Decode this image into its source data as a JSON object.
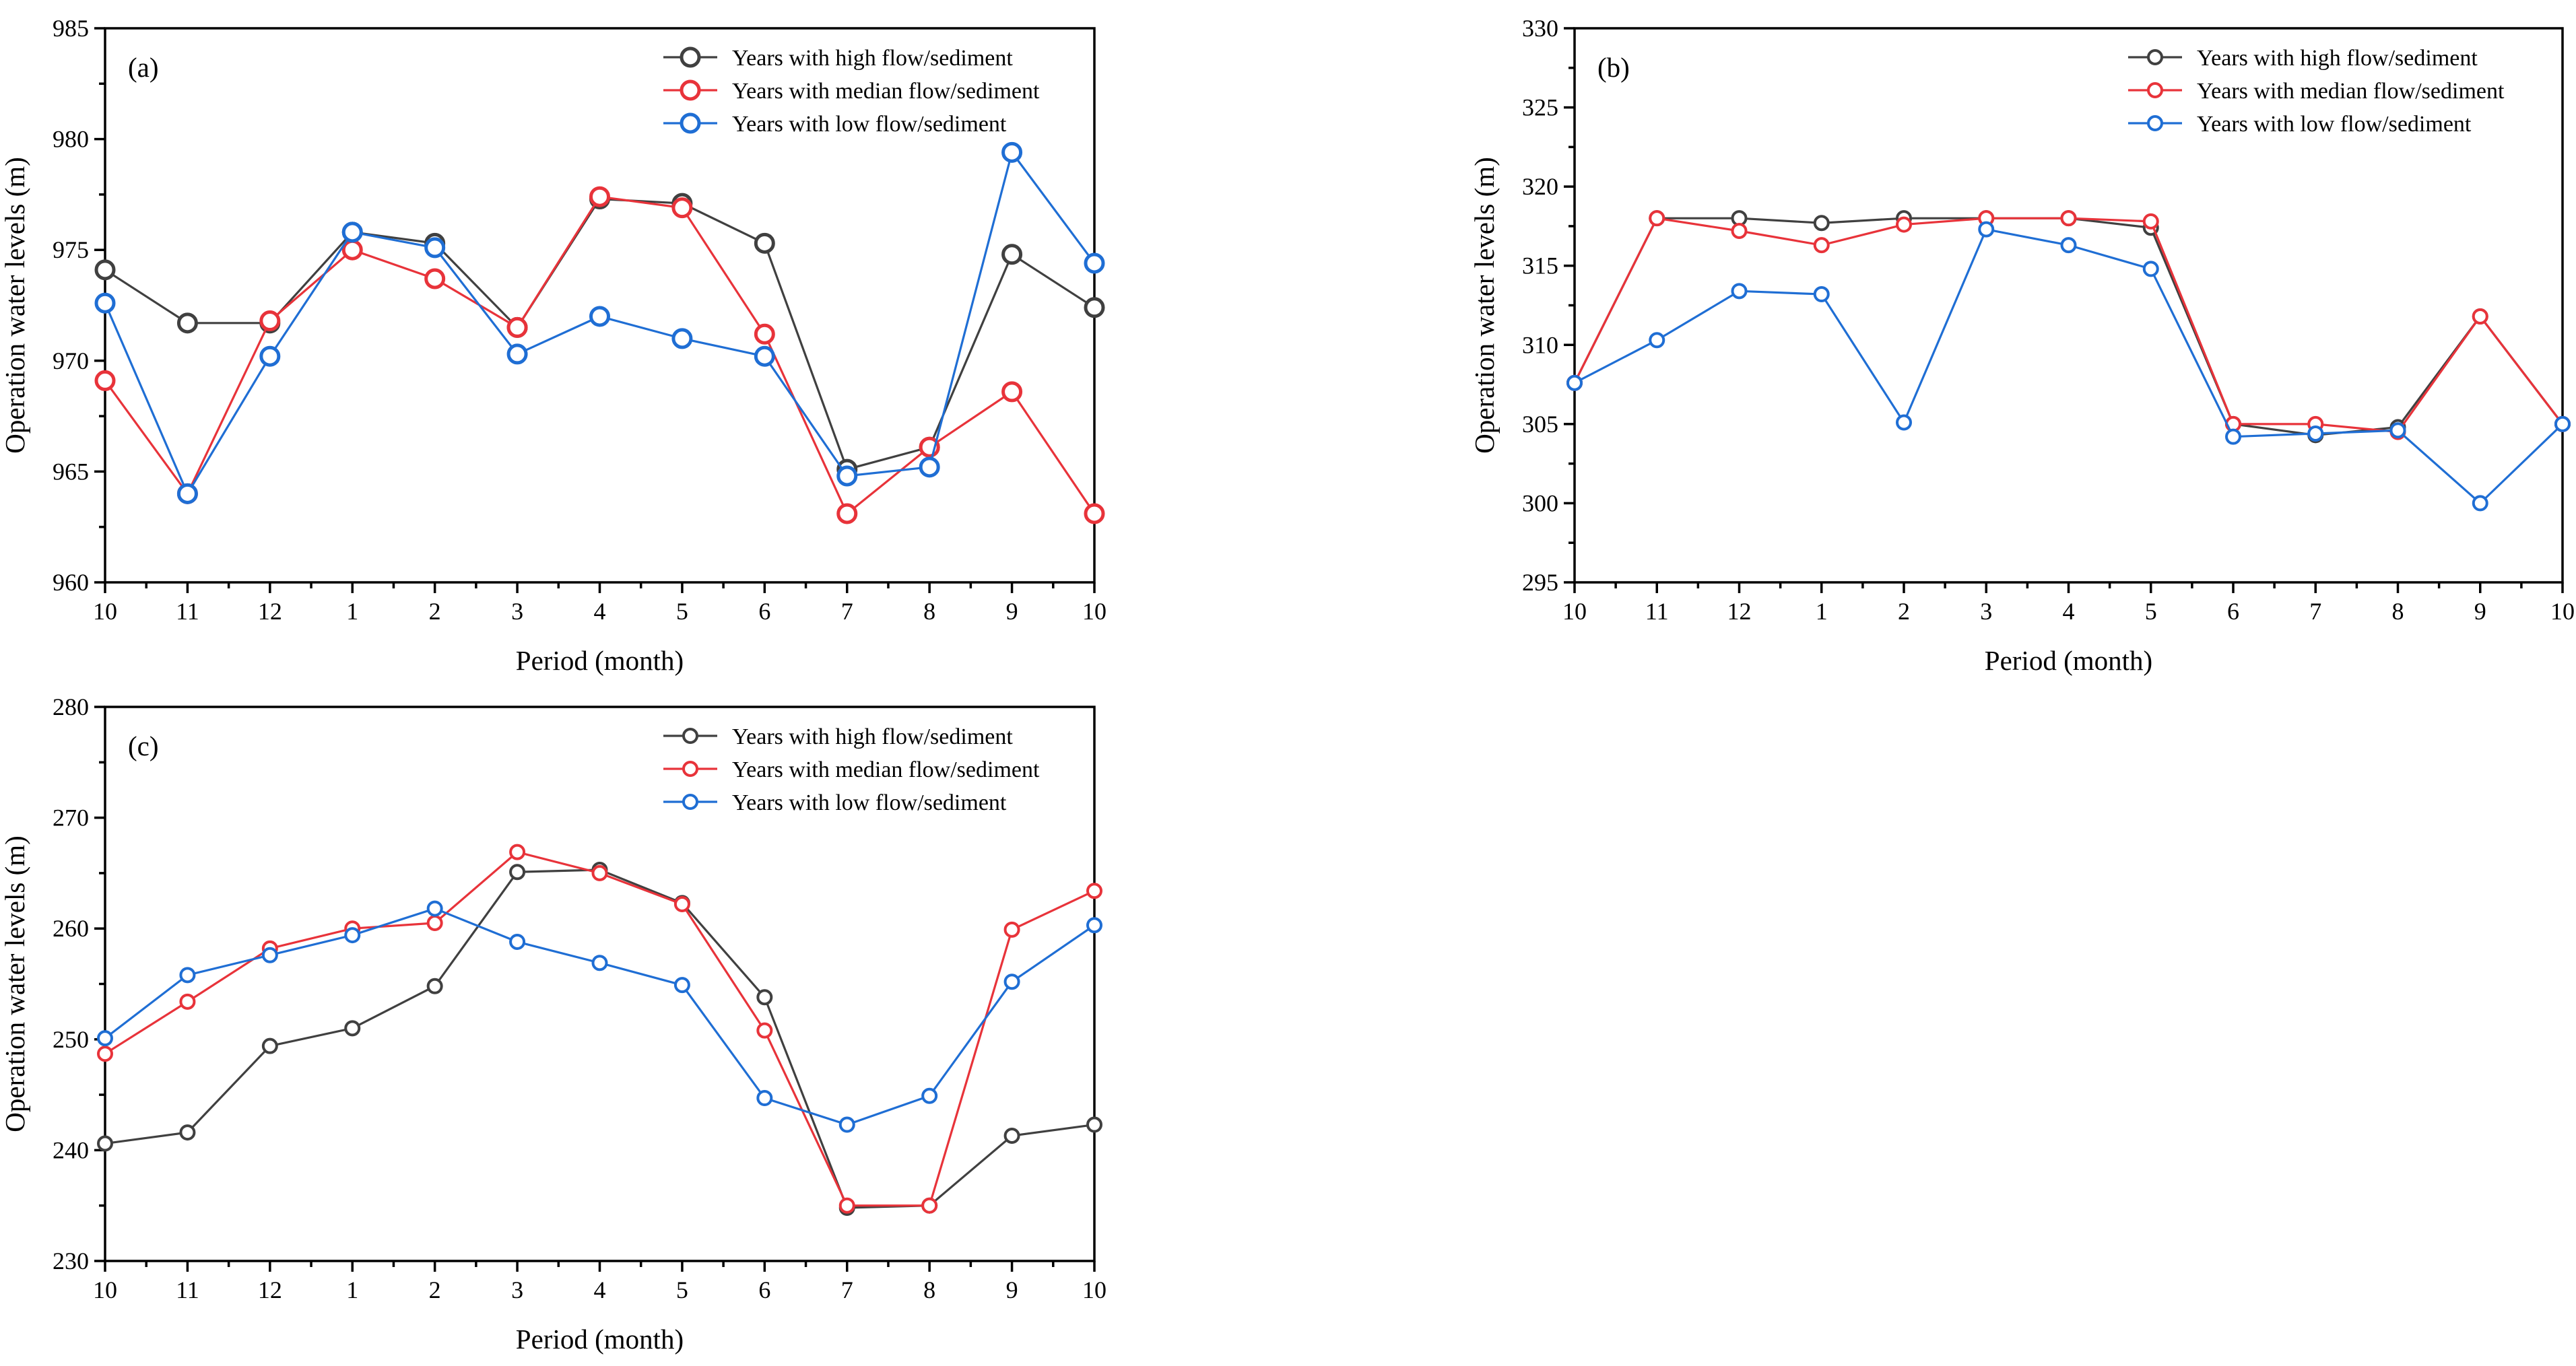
{
  "colors": {
    "high": "#404040",
    "median": "#e8333a",
    "low": "#1f6ed4"
  },
  "chart_data": [
    {
      "type": "line",
      "panel_label": "(a)",
      "xlabel": "Period (month)",
      "ylabel": "Operation water levels (m)",
      "categories": [
        "10",
        "11",
        "12",
        "1",
        "2",
        "3",
        "4",
        "5",
        "6",
        "7",
        "8",
        "9",
        "10"
      ],
      "ylim": [
        960,
        985
      ],
      "yticks": [
        "960",
        "965",
        "970",
        "975",
        "980",
        "985"
      ],
      "legend_position": "top-right",
      "series": [
        {
          "name": "Years with high flow/sediment",
          "key": "high",
          "values": [
            974.1,
            971.7,
            971.7,
            975.8,
            975.3,
            971.5,
            977.3,
            977.1,
            975.3,
            965.1,
            966.1,
            974.8,
            972.4
          ]
        },
        {
          "name": "Years with median flow/sediment",
          "key": "median",
          "values": [
            969.1,
            964.0,
            971.8,
            975.0,
            973.7,
            971.5,
            977.4,
            976.9,
            971.2,
            963.1,
            966.1,
            968.6,
            963.1
          ]
        },
        {
          "name": "Years with low flow/sediment",
          "key": "low",
          "values": [
            972.6,
            964.0,
            970.2,
            975.8,
            975.1,
            970.3,
            972.0,
            971.0,
            970.2,
            964.8,
            965.2,
            979.4,
            974.4
          ]
        }
      ]
    },
    {
      "type": "line",
      "panel_label": "(b)",
      "xlabel": "Period (month)",
      "ylabel": "Operation water levels (m)",
      "categories": [
        "10",
        "11",
        "12",
        "1",
        "2",
        "3",
        "4",
        "5",
        "6",
        "7",
        "8",
        "9",
        "10"
      ],
      "ylim": [
        295,
        330
      ],
      "yticks": [
        "295",
        "300",
        "305",
        "310",
        "315",
        "320",
        "325",
        "330"
      ],
      "legend_position": "top-right",
      "series": [
        {
          "name": "Years with high flow/sediment",
          "key": "high",
          "values": [
            307.6,
            318.0,
            318.0,
            317.7,
            318.0,
            318.0,
            318.0,
            317.4,
            305.0,
            304.3,
            304.8,
            311.8,
            305.0
          ]
        },
        {
          "name": "Years with median flow/sediment",
          "key": "median",
          "values": [
            307.6,
            318.0,
            317.2,
            316.3,
            317.6,
            318.0,
            318.0,
            317.8,
            305.0,
            305.0,
            304.5,
            311.8,
            305.0
          ]
        },
        {
          "name": "Years with low flow/sediment",
          "key": "low",
          "values": [
            307.6,
            310.3,
            313.4,
            313.2,
            305.1,
            317.3,
            316.3,
            314.8,
            304.2,
            304.4,
            304.6,
            300.0,
            305.0
          ]
        }
      ]
    },
    {
      "type": "line",
      "panel_label": "(c)",
      "xlabel": "Period (month)",
      "ylabel": "Operation water levels (m)",
      "categories": [
        "10",
        "11",
        "12",
        "1",
        "2",
        "3",
        "4",
        "5",
        "6",
        "7",
        "8",
        "9",
        "10"
      ],
      "ylim": [
        230,
        280
      ],
      "yticks": [
        "230",
        "240",
        "250",
        "260",
        "270",
        "280"
      ],
      "legend_position": "top-right",
      "series": [
        {
          "name": "Years with high flow/sediment",
          "key": "high",
          "values": [
            240.6,
            241.6,
            249.4,
            251.0,
            254.8,
            265.1,
            265.3,
            262.3,
            253.8,
            234.8,
            235.0,
            241.3,
            242.3
          ]
        },
        {
          "name": "Years with median flow/sediment",
          "key": "median",
          "values": [
            248.7,
            253.4,
            258.2,
            260.0,
            260.5,
            266.9,
            265.0,
            262.2,
            250.8,
            235.0,
            235.0,
            259.9,
            263.4
          ]
        },
        {
          "name": "Years with low flow/sediment",
          "key": "low",
          "values": [
            250.1,
            255.8,
            257.6,
            259.4,
            261.8,
            258.8,
            256.9,
            254.9,
            244.7,
            242.3,
            244.9,
            255.2,
            260.3
          ]
        }
      ]
    }
  ]
}
